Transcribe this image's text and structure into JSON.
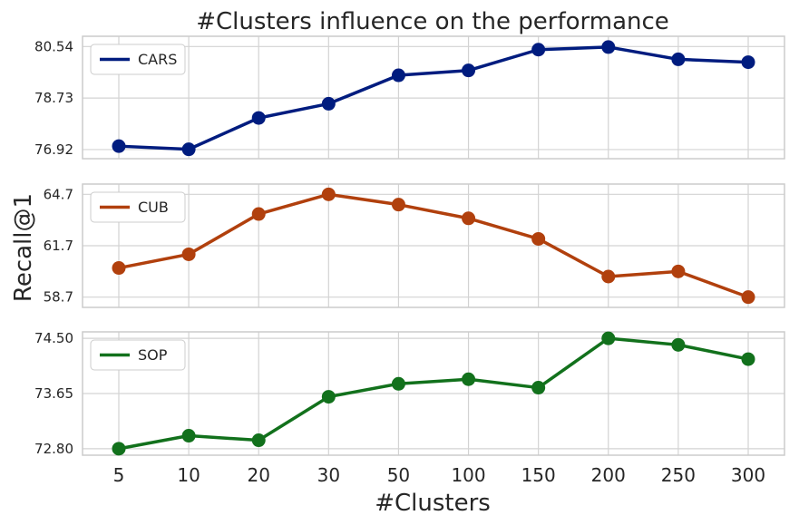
{
  "title": "#Clusters influence on the performance",
  "xlabel": "#Clusters",
  "ylabel": "Recall@1",
  "chart_data": {
    "type": "line",
    "title": "#Clusters influence on the performance",
    "xlabel": "#Clusters",
    "ylabel": "Recall@1",
    "categories": [
      "5",
      "10",
      "20",
      "30",
      "50",
      "100",
      "150",
      "200",
      "250",
      "300"
    ],
    "grid": true,
    "legend_position": "top-left",
    "panels": [
      {
        "name": "CARS",
        "color": "#001c7f",
        "yticks": [
          "80.54",
          "78.73",
          "76.92"
        ],
        "ytick_values": [
          80.54,
          78.73,
          76.92
        ],
        "ylim": [
          76.6,
          80.9
        ],
        "values": [
          77.04,
          76.93,
          78.03,
          78.53,
          79.53,
          79.7,
          80.43,
          80.52,
          80.09,
          79.99
        ]
      },
      {
        "name": "CUB",
        "color": "#b1400d",
        "yticks": [
          "64.7",
          "61.7",
          "58.7"
        ],
        "ytick_values": [
          64.7,
          61.7,
          58.7
        ],
        "ylim": [
          58.1,
          65.3
        ],
        "values": [
          60.4,
          61.2,
          63.55,
          64.7,
          64.1,
          63.3,
          62.1,
          59.9,
          60.2,
          58.7
        ]
      },
      {
        "name": "SOP",
        "color": "#12711c",
        "yticks": [
          "74.50",
          "73.65",
          "72.80"
        ],
        "ytick_values": [
          74.5,
          73.65,
          72.8
        ],
        "ylim": [
          72.7,
          74.6
        ],
        "values": [
          72.8,
          73.0,
          72.93,
          73.6,
          73.8,
          73.87,
          73.74,
          74.5,
          74.4,
          74.18
        ]
      }
    ]
  }
}
